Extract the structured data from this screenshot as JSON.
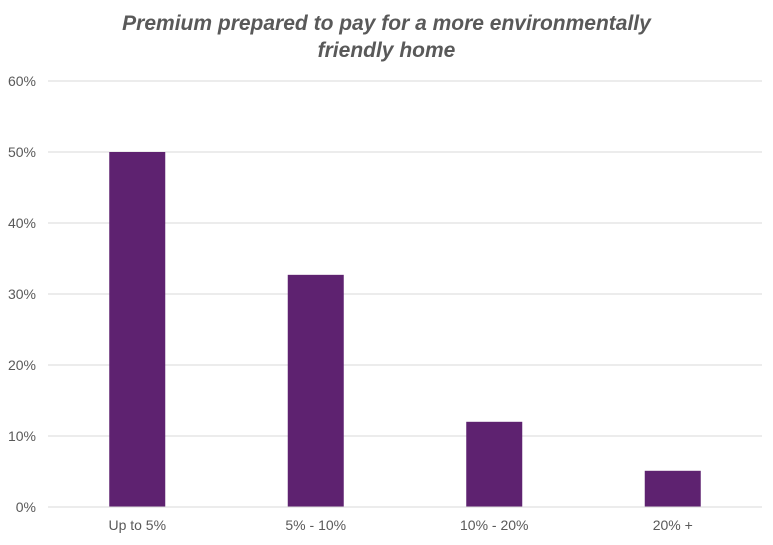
{
  "chart_data": {
    "type": "bar",
    "title_lines": [
      "Premium prepared to pay for a more environmentally",
      "friendly home"
    ],
    "categories": [
      "Up to 5%",
      "5% - 10%",
      "10% - 20%",
      "20% +"
    ],
    "values": [
      50,
      32.7,
      12,
      5.1
    ],
    "value_unit": "%",
    "ylim": [
      0,
      60
    ],
    "yticks": [
      0,
      10,
      20,
      30,
      40,
      50,
      60
    ],
    "ytick_labels": [
      "0%",
      "10%",
      "20%",
      "30%",
      "40%",
      "50%",
      "60%"
    ],
    "xlabel": "",
    "ylabel": "",
    "grid": true,
    "legend": "none",
    "bar_color": "#5e2270"
  }
}
